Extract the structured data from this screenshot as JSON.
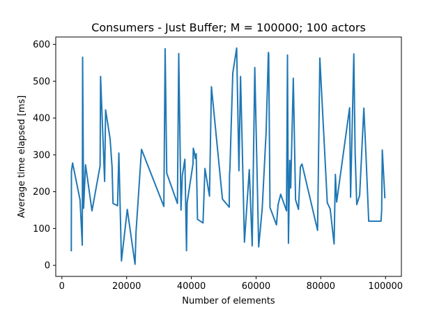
{
  "chart_data": {
    "type": "line",
    "title": "Consumers - Just Buffer; M = 100000; 100 actors",
    "xlabel": "Number of elements",
    "ylabel": "Average time elapsed [ms]",
    "xlim": [
      -1900,
      104900
    ],
    "ylim": [
      -30,
      620
    ],
    "grid": false,
    "line_color": "#1f77b4",
    "xticks": [
      0,
      20000,
      40000,
      60000,
      80000,
      100000
    ],
    "yticks": [
      0,
      100,
      200,
      300,
      400,
      500,
      600
    ],
    "series": [
      {
        "x": [
          2900,
          2950,
          3300,
          5600,
          6300,
          6400,
          6700,
          7300,
          9300,
          11800,
          11950,
          13200,
          13500,
          14900,
          15500,
          15800,
          17200,
          17600,
          18400,
          20200,
          22600,
          22900,
          24600,
          31500,
          31900,
          32400,
          35700,
          36100,
          36800,
          37200,
          38000,
          38500,
          38700,
          40500,
          40600,
          40900,
          41200,
          41500,
          41900,
          43600,
          44200,
          45600,
          46200,
          49600,
          51700,
          51800,
          51900,
          52800,
          54000,
          54700,
          55200,
          55800,
          56400,
          57900,
          58800,
          59600,
          60800,
          61900,
          63100,
          63800,
          63900,
          64300,
          66300,
          66800,
          67600,
          69400,
          69700,
          70000,
          70400,
          70700,
          71500,
          72200,
          72600,
          73100,
          73700,
          74200,
          79000,
          79700,
          82000,
          82900,
          84100,
          84500,
          84900,
          88900,
          89200,
          90200,
          90600,
          91100,
          92000,
          93300,
          94000,
          94800,
          95700,
          98600,
          98800,
          99000,
          99800
        ],
        "y": [
          38,
          255,
          278,
          178,
          55,
          565,
          155,
          273,
          148,
          270,
          513,
          228,
          422,
          343,
          267,
          168,
          162,
          305,
          12,
          152,
          3,
          90,
          315,
          160,
          588,
          250,
          168,
          575,
          150,
          244,
          288,
          40,
          170,
          275,
          318,
          308,
          290,
          303,
          125,
          115,
          263,
          188,
          485,
          180,
          158,
          250,
          258,
          522,
          590,
          257,
          513,
          293,
          63,
          260,
          53,
          537,
          50,
          155,
          362,
          578,
          575,
          157,
          110,
          165,
          193,
          148,
          571,
          60,
          285,
          210,
          508,
          178,
          167,
          152,
          268,
          275,
          95,
          563,
          170,
          153,
          58,
          247,
          172,
          428,
          185,
          574,
          307,
          165,
          190,
          427,
          290,
          120,
          120,
          120,
          148,
          313,
          182
        ]
      }
    ]
  }
}
